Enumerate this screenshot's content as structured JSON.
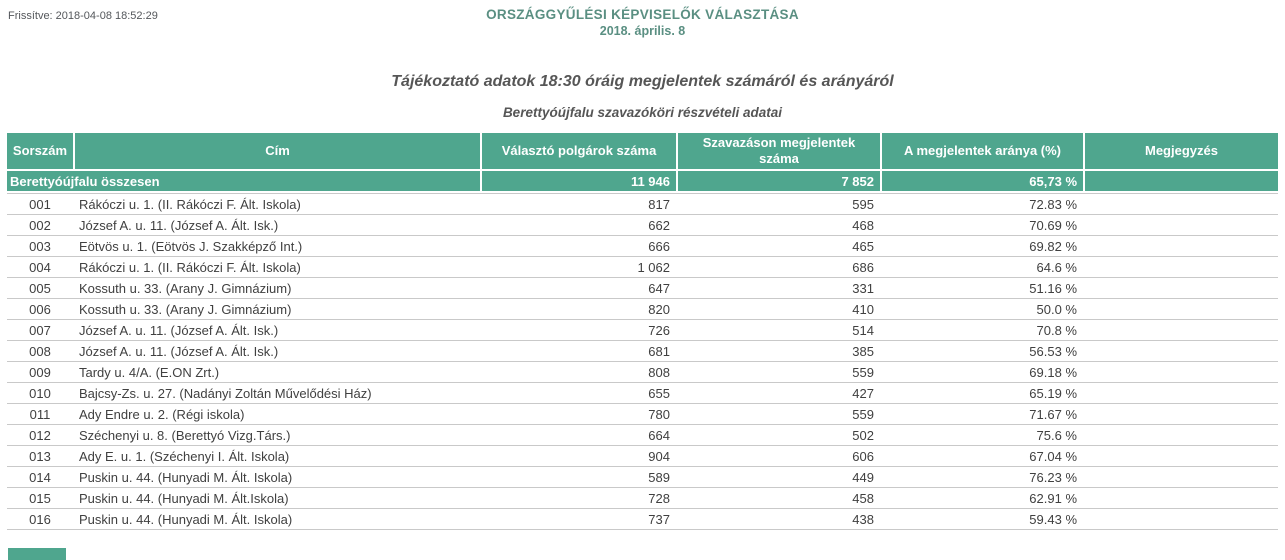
{
  "meta": {
    "updated_label": "Frissítve: 2018-04-08 18:52:29"
  },
  "header": {
    "title": "ORSZÁGGYŰLÉSI KÉPVISELŐK VÁLASZTÁSA",
    "date": "2018. április. 8",
    "main_title": "Tájékoztató adatok 18:30 óráig megjelentek számáról és arányáról",
    "subtitle": "Berettyóújfalu szavazóköri részvételi adatai"
  },
  "colors": {
    "accent_teal": "#4fa68e",
    "row_border": "#c9c9c9",
    "title_text": "#5a8f82",
    "body_text": "#404040"
  },
  "table": {
    "columns": [
      "Sorszám",
      "Cím",
      "Választó polgárok száma",
      "Szavazáson megjelentek száma",
      "A megjelentek aránya (%)",
      "Megjegyzés"
    ],
    "summary": {
      "label": "Berettyóújfalu összesen",
      "voters": "11 946",
      "turnout": "7 852",
      "ratio": "65,73 %",
      "note": ""
    },
    "rows": [
      [
        "001",
        "Rákóczi u. 1. (II. Rákóczi F. Ált. Iskola)",
        "817",
        "595",
        "72.83 %",
        ""
      ],
      [
        "002",
        "József A. u. 11. (József A. Ált. Isk.)",
        "662",
        "468",
        "70.69 %",
        ""
      ],
      [
        "003",
        "Eötvös u. 1. (Eötvös J. Szakképző Int.)",
        "666",
        "465",
        "69.82 %",
        ""
      ],
      [
        "004",
        "Rákóczi u. 1. (II. Rákóczi F. Ált. Iskola)",
        "1 062",
        "686",
        "64.6 %",
        ""
      ],
      [
        "005",
        "Kossuth u. 33. (Arany J. Gimnázium)",
        "647",
        "331",
        "51.16 %",
        ""
      ],
      [
        "006",
        "Kossuth u. 33. (Arany J. Gimnázium)",
        "820",
        "410",
        "50.0 %",
        ""
      ],
      [
        "007",
        "József A. u. 11. (József A. Ált. Isk.)",
        "726",
        "514",
        "70.8 %",
        ""
      ],
      [
        "008",
        "József A. u. 11. (József A. Ált. Isk.)",
        "681",
        "385",
        "56.53 %",
        ""
      ],
      [
        "009",
        "Tardy u. 4/A. (E.ON Zrt.)",
        "808",
        "559",
        "69.18 %",
        ""
      ],
      [
        "010",
        "Bajcsy-Zs. u. 27. (Nadányi Zoltán Művelődési Ház)",
        "655",
        "427",
        "65.19 %",
        ""
      ],
      [
        "011",
        "Ady Endre u. 2. (Régi iskola)",
        "780",
        "559",
        "71.67 %",
        ""
      ],
      [
        "012",
        "Széchenyi u. 8. (Berettyó Vizg.Társ.)",
        "664",
        "502",
        "75.6 %",
        ""
      ],
      [
        "013",
        "Ady E. u. 1. (Széchenyi I. Ált. Iskola)",
        "904",
        "606",
        "67.04 %",
        ""
      ],
      [
        "014",
        "Puskin u. 44. (Hunyadi M. Ált. Iskola)",
        "589",
        "449",
        "76.23 %",
        ""
      ],
      [
        "015",
        "Puskin u. 44. (Hunyadi M. Ált.Iskola)",
        "728",
        "458",
        "62.91 %",
        ""
      ],
      [
        "016",
        "Puskin u. 44. (Hunyadi M. Ált. Iskola)",
        "737",
        "438",
        "59.43 %",
        ""
      ]
    ]
  }
}
